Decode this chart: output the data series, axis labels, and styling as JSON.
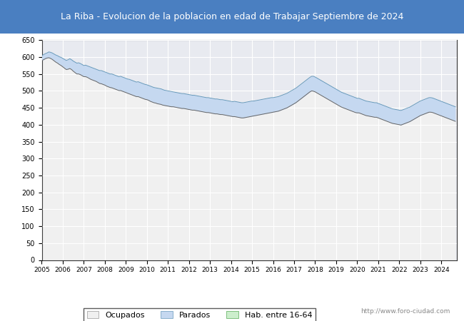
{
  "title": "La Riba - Evolucion de la poblacion en edad de Trabajar Septiembre de 2024",
  "title_bg": "#4a7fc1",
  "title_color": "#ffffff",
  "ylim": [
    0,
    650
  ],
  "yticks": [
    0,
    50,
    100,
    150,
    200,
    250,
    300,
    350,
    400,
    450,
    500,
    550,
    600,
    650
  ],
  "watermark": "http://www.foro-ciudad.com",
  "legend_labels": [
    "Ocupados",
    "Parados",
    "Hab. entre 16-64"
  ],
  "plot_bg": "#e8eaf0",
  "grid_color": "#ffffff",
  "hab": [
    604,
    607,
    610,
    612,
    615,
    614,
    612,
    609,
    606,
    604,
    601,
    599,
    596,
    593,
    590,
    592,
    595,
    592,
    588,
    585,
    582,
    583,
    581,
    578,
    575,
    576,
    574,
    572,
    570,
    568,
    566,
    564,
    562,
    560,
    560,
    558,
    556,
    554,
    552,
    550,
    550,
    548,
    546,
    544,
    542,
    543,
    541,
    539,
    537,
    535,
    534,
    532,
    530,
    528,
    526,
    527,
    525,
    523,
    521,
    519,
    518,
    516,
    514,
    512,
    510,
    509,
    508,
    507,
    506,
    504,
    502,
    501,
    500,
    499,
    498,
    497,
    496,
    495,
    494,
    493,
    492,
    492,
    491,
    490,
    489,
    488,
    487,
    487,
    486,
    485,
    484,
    483,
    482,
    481,
    480,
    480,
    479,
    478,
    477,
    476,
    476,
    475,
    474,
    474,
    473,
    472,
    471,
    470,
    469,
    468,
    469,
    468,
    467,
    466,
    465,
    465,
    466,
    467,
    468,
    469,
    470,
    470,
    471,
    472,
    473,
    474,
    475,
    476,
    477,
    478,
    479,
    480,
    480,
    481,
    482,
    483,
    485,
    487,
    489,
    491,
    493,
    496,
    499,
    502,
    505,
    508,
    512,
    516,
    520,
    524,
    528,
    532,
    536,
    540,
    543,
    543,
    541,
    538,
    535,
    532,
    529,
    526,
    523,
    520,
    517,
    514,
    511,
    508,
    505,
    502,
    499,
    496,
    494,
    492,
    490,
    488,
    486,
    484,
    482,
    480,
    478,
    478,
    476,
    474,
    472,
    470,
    469,
    468,
    467,
    466,
    465,
    465,
    463,
    461,
    459,
    457,
    455,
    453,
    451,
    449,
    447,
    446,
    445,
    444,
    443,
    442,
    444,
    446,
    448,
    450,
    452,
    455,
    458,
    461,
    464,
    467,
    470,
    472,
    474,
    476,
    478,
    480,
    480,
    479,
    477,
    475,
    473,
    471,
    469,
    467,
    465,
    463,
    461,
    459,
    457,
    455,
    453
  ],
  "ocupados": [
    590,
    592,
    595,
    597,
    598,
    596,
    593,
    589,
    585,
    582,
    578,
    575,
    571,
    567,
    563,
    564,
    566,
    563,
    558,
    554,
    550,
    550,
    548,
    545,
    542,
    542,
    540,
    537,
    534,
    532,
    530,
    528,
    525,
    522,
    521,
    519,
    517,
    514,
    512,
    510,
    509,
    507,
    505,
    503,
    501,
    501,
    499,
    497,
    495,
    493,
    491,
    489,
    487,
    485,
    483,
    483,
    481,
    479,
    477,
    475,
    474,
    472,
    469,
    467,
    465,
    464,
    462,
    461,
    460,
    458,
    457,
    456,
    455,
    454,
    453,
    453,
    452,
    451,
    450,
    449,
    448,
    448,
    447,
    446,
    445,
    444,
    443,
    443,
    442,
    441,
    440,
    439,
    438,
    437,
    436,
    436,
    435,
    434,
    433,
    432,
    432,
    431,
    430,
    430,
    429,
    428,
    427,
    426,
    425,
    424,
    424,
    423,
    422,
    421,
    420,
    420,
    421,
    422,
    423,
    424,
    425,
    426,
    427,
    428,
    429,
    430,
    431,
    432,
    433,
    434,
    435,
    436,
    437,
    438,
    439,
    440,
    442,
    444,
    446,
    448,
    450,
    453,
    456,
    459,
    462,
    465,
    469,
    473,
    477,
    481,
    485,
    489,
    493,
    497,
    500,
    499,
    497,
    494,
    491,
    488,
    485,
    482,
    479,
    476,
    473,
    470,
    467,
    464,
    461,
    458,
    455,
    452,
    450,
    448,
    446,
    444,
    442,
    440,
    438,
    436,
    435,
    435,
    433,
    431,
    429,
    427,
    426,
    425,
    424,
    423,
    422,
    422,
    420,
    418,
    416,
    414,
    412,
    410,
    408,
    406,
    404,
    403,
    402,
    401,
    400,
    399,
    401,
    403,
    405,
    407,
    409,
    412,
    415,
    418,
    421,
    424,
    427,
    429,
    431,
    433,
    435,
    437,
    437,
    436,
    434,
    432,
    430,
    428,
    426,
    424,
    422,
    420,
    418,
    416,
    414,
    412,
    410
  ],
  "parados": [
    14,
    15,
    15,
    15,
    17,
    18,
    19,
    20,
    21,
    22,
    23,
    24,
    25,
    26,
    27,
    28,
    29,
    29,
    30,
    31,
    32,
    33,
    34,
    33,
    33,
    34,
    34,
    35,
    36,
    36,
    36,
    36,
    37,
    38,
    39,
    39,
    39,
    40,
    40,
    40,
    41,
    41,
    41,
    41,
    41,
    42,
    42,
    42,
    42,
    42,
    43,
    43,
    43,
    43,
    43,
    44,
    44,
    44,
    44,
    44,
    44,
    44,
    45,
    45,
    45,
    45,
    46,
    46,
    46,
    46,
    45,
    45,
    45,
    45,
    45,
    44,
    44,
    44,
    44,
    44,
    44,
    44,
    44,
    44,
    44,
    44,
    44,
    44,
    44,
    44,
    44,
    44,
    44,
    44,
    44,
    44,
    44,
    44,
    44,
    44,
    44,
    44,
    44,
    44,
    44,
    44,
    44,
    44,
    44,
    44,
    45,
    45,
    45,
    45,
    45,
    45,
    45,
    45,
    45,
    45,
    45,
    44,
    44,
    44,
    44,
    44,
    44,
    44,
    44,
    44,
    44,
    44,
    43,
    43,
    43,
    43,
    43,
    43,
    43,
    43,
    43,
    43,
    43,
    43,
    43,
    43,
    43,
    43,
    43,
    43,
    43,
    43,
    43,
    43,
    43,
    44,
    44,
    44,
    44,
    44,
    44,
    44,
    44,
    44,
    44,
    44,
    44,
    44,
    44,
    44,
    44,
    44,
    44,
    44,
    44,
    44,
    44,
    44,
    44,
    44,
    43,
    43,
    43,
    43,
    43,
    43,
    43,
    43,
    43,
    43,
    43,
    43,
    43,
    43,
    43,
    43,
    43,
    43,
    43,
    43,
    43,
    43,
    43,
    43,
    43,
    43,
    43,
    43,
    43,
    43,
    43,
    43,
    43,
    43,
    43,
    43,
    43,
    43,
    43,
    43,
    43,
    43,
    43,
    43,
    43,
    43,
    43,
    43,
    43,
    43,
    43,
    43,
    43,
    43,
    43,
    43,
    43
  ]
}
